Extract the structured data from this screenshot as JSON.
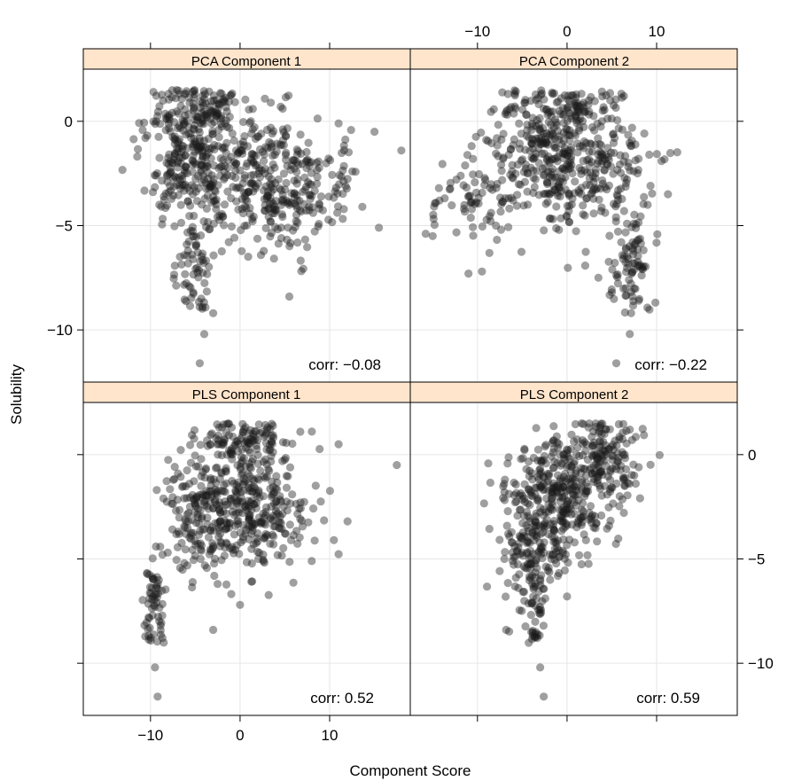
{
  "chart_data": {
    "type": "scatter",
    "xlabel": "Component Score",
    "ylabel": "Solubility",
    "xlim": [
      -17.5,
      19
    ],
    "ylim": [
      -12.5,
      2.5
    ],
    "xticks": [
      -10,
      0,
      10
    ],
    "yticks": [
      -10,
      -5,
      0
    ],
    "grid": true,
    "colors": {
      "point": "#1a1a1a",
      "strip": "#ffe5cc",
      "grid": "#e6e6e6",
      "frame": "#000000"
    },
    "point_opacity": 0.42,
    "panels": [
      {
        "title": "PCA Component 1",
        "corr_label": "corr: −0.08",
        "col": 0,
        "row": 0,
        "cluster_seed": 11,
        "clusters": [
          {
            "cx": -6,
            "cy": -1.5,
            "sx": 2.4,
            "sy": 1.6,
            "n": 260
          },
          {
            "cx": 0,
            "cy": -2.8,
            "sx": 3.4,
            "sy": 1.8,
            "n": 230
          },
          {
            "cx": 7,
            "cy": -3.2,
            "sx": 3.2,
            "sy": 1.3,
            "n": 170
          },
          {
            "cx": -5,
            "cy": -6.8,
            "sx": 0.9,
            "sy": 1.2,
            "n": 60
          },
          {
            "cx": -3,
            "cy": 0.6,
            "sx": 1.6,
            "sy": 0.5,
            "n": 50
          }
        ],
        "extra": [
          [
            -4,
            -10.2
          ],
          [
            -4.5,
            -11.6
          ],
          [
            18,
            -1.4
          ],
          [
            15,
            -0.5
          ],
          [
            11,
            -0.1
          ],
          [
            15.5,
            -5.1
          ],
          [
            5.5,
            -8.4
          ],
          [
            -3,
            -9.2
          ],
          [
            -8.2,
            -2.0
          ],
          [
            -8.5,
            -3.6
          ]
        ]
      },
      {
        "title": "PCA Component 2",
        "corr_label": "corr: −0.22",
        "col": 1,
        "row": 0,
        "cluster_seed": 23,
        "clusters": [
          {
            "cx": -3,
            "cy": -1.2,
            "sx": 3.4,
            "sy": 1.5,
            "n": 230
          },
          {
            "cx": 2,
            "cy": -2.6,
            "sx": 3.6,
            "sy": 1.6,
            "n": 230
          },
          {
            "cx": -11,
            "cy": -4.0,
            "sx": 2.4,
            "sy": 0.9,
            "n": 60
          },
          {
            "cx": 7,
            "cy": -6.8,
            "sx": 1.0,
            "sy": 1.3,
            "n": 80
          },
          {
            "cx": 1,
            "cy": 0.6,
            "sx": 3.0,
            "sy": 0.5,
            "n": 60
          }
        ],
        "extra": [
          [
            -11,
            -7.3
          ],
          [
            -9.5,
            -7.2
          ],
          [
            7,
            -10.2
          ],
          [
            5.5,
            -11.6
          ],
          [
            -15,
            -5.5
          ],
          [
            -10.5,
            -1.8
          ],
          [
            -6.5,
            -1.6
          ],
          [
            9,
            -4.0
          ],
          [
            3.5,
            -7.5
          ],
          [
            5,
            -8.2
          ]
        ]
      },
      {
        "title": "PLS Component 1",
        "corr_label": "corr: 0.52",
        "col": 0,
        "row": 1,
        "cluster_seed": 37,
        "clusters": [
          {
            "cx": 1.2,
            "cy": -2.2,
            "sx": 3.2,
            "sy": 1.6,
            "n": 360
          },
          {
            "cx": -5,
            "cy": -3.2,
            "sx": 2.0,
            "sy": 1.4,
            "n": 130
          },
          {
            "cx": -9.5,
            "cy": -7.2,
            "sx": 0.6,
            "sy": 1.2,
            "n": 60
          },
          {
            "cx": 0.5,
            "cy": 0.8,
            "sx": 2.5,
            "sy": 0.5,
            "n": 80
          }
        ],
        "extra": [
          [
            -9.5,
            -10.2
          ],
          [
            -9.2,
            -11.6
          ],
          [
            17.5,
            -0.5
          ],
          [
            12,
            -3.2
          ],
          [
            -3,
            -8.4
          ],
          [
            0,
            -7.2
          ],
          [
            -2.5,
            -6.2
          ],
          [
            8,
            -5.1
          ],
          [
            11,
            0.5
          ]
        ]
      },
      {
        "title": "PLS Component 2",
        "corr_label": "corr: 0.59",
        "col": 1,
        "row": 1,
        "cluster_seed": 53,
        "clusters": [
          {
            "cx": -1,
            "cy": -2.0,
            "sx": 2.8,
            "sy": 1.5,
            "n": 340
          },
          {
            "cx": 4.5,
            "cy": -0.3,
            "sx": 1.8,
            "sy": 1.0,
            "n": 140
          },
          {
            "cx": -4,
            "cy": -4.5,
            "sx": 1.6,
            "sy": 1.4,
            "n": 120
          },
          {
            "cx": -3.5,
            "cy": -7.6,
            "sx": 0.6,
            "sy": 1.0,
            "n": 40
          }
        ],
        "extra": [
          [
            -3,
            -10.2
          ],
          [
            -2.6,
            -11.6
          ],
          [
            7,
            1.2
          ],
          [
            7.5,
            -1.0
          ],
          [
            8,
            -0.6
          ],
          [
            -7,
            -5.0
          ],
          [
            -6.8,
            -8.4
          ],
          [
            -4,
            -8.5
          ],
          [
            0,
            -6.8
          ],
          [
            -7,
            -1.8
          ]
        ]
      }
    ]
  }
}
